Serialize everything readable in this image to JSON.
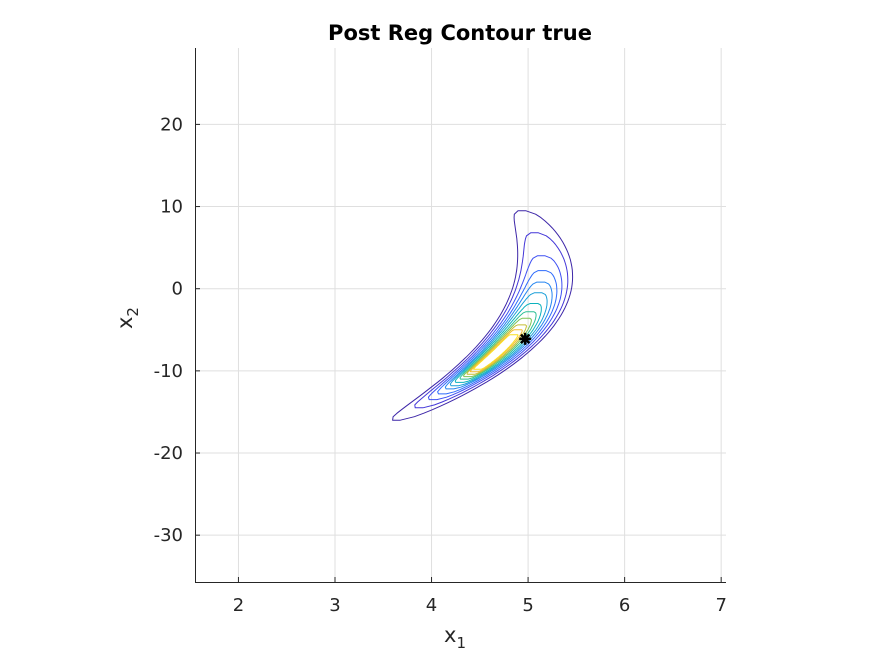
{
  "chart_data": {
    "type": "contour",
    "title": "Post Reg Contour true",
    "xlabel": {
      "main": "x",
      "sub": "1"
    },
    "ylabel": {
      "main": "x",
      "sub": "2"
    },
    "xlim": [
      1.55,
      7.05
    ],
    "ylim": [
      -35.7,
      29.3
    ],
    "xticks": [
      2,
      3,
      4,
      5,
      6,
      7
    ],
    "yticks": [
      20,
      10,
      0,
      -10,
      -20,
      -30
    ],
    "grid": true,
    "banana": {
      "apex_x1": 5.05,
      "apex_x2": -2
    },
    "contour_levels": [
      {
        "level": 1,
        "color": "#3d26a8",
        "outer_scale": 1.0,
        "inner_scale": 1.0,
        "x2_top": 9.5,
        "x2_bottom": -16.0
      },
      {
        "level": 2,
        "color": "#4336d8",
        "outer_scale": 0.88,
        "inner_scale": 0.88,
        "x2_top": 6.8,
        "x2_bottom": -14.5
      },
      {
        "level": 3,
        "color": "#3e50f2",
        "outer_scale": 0.76,
        "inner_scale": 0.76,
        "x2_top": 4.0,
        "x2_bottom": -13.5
      },
      {
        "level": 4,
        "color": "#2f6bfb",
        "outer_scale": 0.66,
        "inner_scale": 0.66,
        "x2_top": 2.2,
        "x2_bottom": -12.8
      },
      {
        "level": 5,
        "color": "#2384f0",
        "outer_scale": 0.57,
        "inner_scale": 0.57,
        "x2_top": 0.8,
        "x2_bottom": -12.2
      },
      {
        "level": 6,
        "color": "#1a9fd8",
        "outer_scale": 0.49,
        "inner_scale": 0.49,
        "x2_top": -0.5,
        "x2_bottom": -11.8
      },
      {
        "level": 7,
        "color": "#0cb2bd",
        "outer_scale": 0.41,
        "inner_scale": 0.41,
        "x2_top": -1.8,
        "x2_bottom": -11.4
      },
      {
        "level": 8,
        "color": "#2ebf95",
        "outer_scale": 0.33,
        "inner_scale": 0.33,
        "x2_top": -2.8,
        "x2_bottom": -11.0
      },
      {
        "level": 9,
        "color": "#7dc355",
        "outer_scale": 0.26,
        "inner_scale": 0.26,
        "x2_top": -3.6,
        "x2_bottom": -10.7
      },
      {
        "level": 10,
        "color": "#c5bd32",
        "outer_scale": 0.2,
        "inner_scale": 0.2,
        "x2_top": -4.4,
        "x2_bottom": -10.4
      },
      {
        "level": 11,
        "color": "#f4bd30",
        "outer_scale": 0.14,
        "inner_scale": 0.14,
        "x2_top": -5.0,
        "x2_bottom": -10.1
      },
      {
        "level": 12,
        "color": "#f9df1e",
        "outer_scale": 0.09,
        "inner_scale": 0.09,
        "x2_top": -5.6,
        "x2_bottom": -9.8
      }
    ],
    "marker": {
      "x1": 4.97,
      "x2": -6.1,
      "symbol": "asterisk",
      "color": "#000000"
    }
  }
}
